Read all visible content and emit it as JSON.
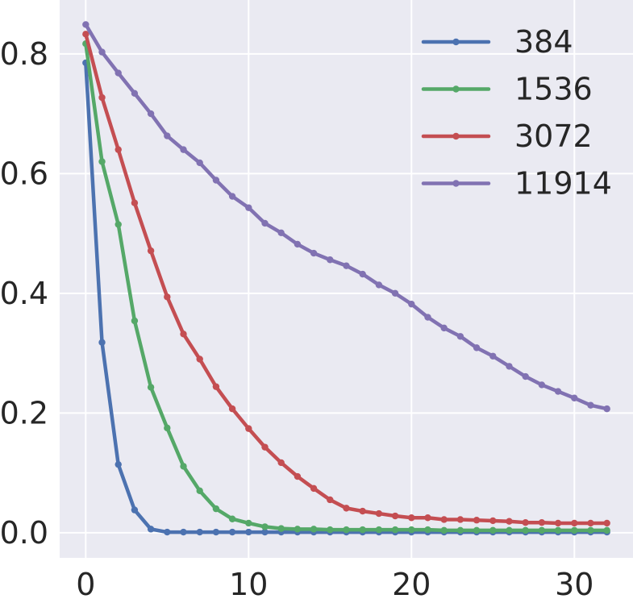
{
  "chart_data": {
    "type": "line",
    "title": "",
    "xlabel": "",
    "ylabel": "",
    "xlim": [
      -1.6,
      33.6
    ],
    "ylim": [
      -0.042,
      0.89
    ],
    "xticks": [
      0,
      10,
      20,
      30
    ],
    "yticks": [
      0.0,
      0.2,
      0.4,
      0.6,
      0.8
    ],
    "xtick_labels": [
      "0",
      "10",
      "20",
      "30"
    ],
    "ytick_labels": [
      "0.0",
      "0.2",
      "0.4",
      "0.6",
      "0.8"
    ],
    "grid": true,
    "background": "#eaeaf2",
    "legend": {
      "placement": "top-right"
    },
    "x": [
      0,
      1,
      2,
      3,
      4,
      5,
      6,
      7,
      8,
      9,
      10,
      11,
      12,
      13,
      14,
      15,
      16,
      17,
      18,
      19,
      20,
      21,
      22,
      23,
      24,
      25,
      26,
      27,
      28,
      29,
      30,
      31,
      32
    ],
    "series": [
      {
        "name": "384",
        "color": "#4c72b0",
        "values": [
          0.785,
          0.318,
          0.114,
          0.038,
          0.006,
          0.001,
          0.001,
          0.001,
          0.001,
          0.001,
          0.001,
          0.001,
          0.001,
          0.001,
          0.001,
          0.001,
          0.001,
          0.001,
          0.001,
          0.001,
          0.001,
          0.001,
          0.001,
          0.001,
          0.001,
          0.001,
          0.001,
          0.001,
          0.001,
          0.001,
          0.001,
          0.001,
          0.001
        ]
      },
      {
        "name": "1536",
        "color": "#55a868",
        "values": [
          0.817,
          0.62,
          0.515,
          0.354,
          0.243,
          0.175,
          0.111,
          0.07,
          0.04,
          0.023,
          0.016,
          0.01,
          0.007,
          0.006,
          0.006,
          0.005,
          0.005,
          0.005,
          0.005,
          0.005,
          0.005,
          0.005,
          0.004,
          0.004,
          0.004,
          0.004,
          0.004,
          0.004,
          0.004,
          0.004,
          0.004,
          0.004,
          0.004
        ]
      },
      {
        "name": "3072",
        "color": "#c44e52",
        "values": [
          0.833,
          0.727,
          0.64,
          0.551,
          0.471,
          0.394,
          0.332,
          0.29,
          0.244,
          0.207,
          0.174,
          0.143,
          0.117,
          0.094,
          0.074,
          0.055,
          0.041,
          0.036,
          0.032,
          0.028,
          0.025,
          0.025,
          0.022,
          0.022,
          0.021,
          0.02,
          0.019,
          0.017,
          0.017,
          0.016,
          0.016,
          0.016,
          0.016
        ]
      },
      {
        "name": "11914",
        "color": "#8172b2",
        "values": [
          0.849,
          0.803,
          0.768,
          0.734,
          0.7,
          0.663,
          0.64,
          0.618,
          0.589,
          0.562,
          0.543,
          0.517,
          0.501,
          0.482,
          0.467,
          0.456,
          0.446,
          0.432,
          0.414,
          0.4,
          0.382,
          0.36,
          0.342,
          0.328,
          0.309,
          0.295,
          0.278,
          0.261,
          0.247,
          0.236,
          0.225,
          0.213,
          0.207
        ]
      }
    ]
  }
}
